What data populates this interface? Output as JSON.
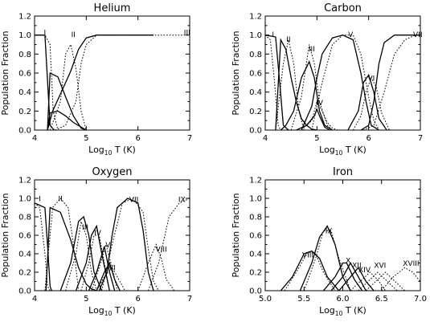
{
  "chart_data": [
    {
      "type": "line",
      "title": "Helium",
      "xlabel": "Log10 T (K)",
      "ylabel": "Population Fraction",
      "xlim": [
        4,
        7
      ],
      "ylim": [
        0,
        1.2
      ],
      "xticks": [
        "4",
        "5",
        "6",
        "7"
      ],
      "yticks": [
        "0.0",
        "0.2",
        "0.4",
        "0.6",
        "0.8",
        "1.0",
        "1.2"
      ],
      "ion_labels": [
        "I",
        "II",
        "III"
      ],
      "series": [
        {
          "style": "solid",
          "x": [
            4.0,
            4.1,
            4.2,
            4.3,
            4.38
          ],
          "y": [
            1.0,
            1.0,
            1.0,
            0.05,
            0.0
          ]
        },
        {
          "style": "solid",
          "x": [
            4.25,
            4.3,
            4.45,
            4.6,
            4.75,
            4.9,
            5.0
          ],
          "y": [
            0.0,
            0.6,
            0.56,
            0.35,
            0.15,
            0.02,
            0.0
          ]
        },
        {
          "style": "solid",
          "x": [
            4.25,
            4.35,
            4.5,
            4.7,
            4.85,
            5.0,
            5.2,
            5.5,
            6.0,
            6.3
          ],
          "y": [
            0.0,
            0.2,
            0.38,
            0.62,
            0.85,
            0.97,
            1.0,
            1.0,
            1.0,
            1.0
          ]
        },
        {
          "style": "solid",
          "x": [
            4.25,
            4.3,
            4.45,
            4.6,
            4.75,
            5.0
          ],
          "y": [
            0.0,
            0.18,
            0.2,
            0.15,
            0.08,
            0.0
          ]
        },
        {
          "style": "dotted",
          "x": [
            4.0,
            4.2,
            4.3,
            4.36,
            4.45
          ],
          "y": [
            1.0,
            1.0,
            0.9,
            0.2,
            0.0
          ]
        },
        {
          "style": "dotted",
          "x": [
            4.3,
            4.5,
            4.6,
            4.7,
            4.8,
            4.9,
            5.0
          ],
          "y": [
            0.0,
            0.3,
            0.8,
            0.9,
            0.65,
            0.2,
            0.0
          ]
        },
        {
          "style": "dotted",
          "x": [
            4.4,
            4.6,
            4.8,
            4.9,
            5.0,
            5.2,
            6.0,
            7.0
          ],
          "y": [
            0.0,
            0.05,
            0.3,
            0.7,
            0.9,
            1.0,
            1.0,
            1.0
          ]
        }
      ]
    },
    {
      "type": "line",
      "title": "Carbon",
      "xlabel": "Log10 T (K)",
      "ylabel": "Population Fraction",
      "xlim": [
        4,
        7
      ],
      "ylim": [
        0,
        1.2
      ],
      "xticks": [
        "4",
        "5",
        "6",
        "7"
      ],
      "yticks": [
        "0.0",
        "0.2",
        "0.4",
        "0.6",
        "0.8",
        "1.0",
        "1.2"
      ],
      "ion_labels": [
        "I",
        "II",
        "III",
        "IV",
        "V",
        "VI",
        "VII"
      ],
      "series": [
        {
          "style": "solid",
          "x": [
            4.0,
            4.2,
            4.28,
            4.35,
            4.45
          ],
          "y": [
            1.0,
            0.98,
            0.5,
            0.05,
            0.0
          ]
        },
        {
          "style": "solid",
          "x": [
            4.2,
            4.3,
            4.4,
            4.5,
            4.6,
            4.7,
            4.8,
            4.9,
            5.0
          ],
          "y": [
            0.0,
            0.95,
            0.85,
            0.55,
            0.3,
            0.12,
            0.05,
            0.01,
            0.0
          ]
        },
        {
          "style": "solid",
          "x": [
            4.3,
            4.4,
            4.55,
            4.7,
            4.85,
            4.95,
            5.05,
            5.15,
            5.3
          ],
          "y": [
            0.0,
            0.05,
            0.2,
            0.55,
            0.72,
            0.55,
            0.2,
            0.05,
            0.0
          ]
        },
        {
          "style": "solid",
          "x": [
            4.6,
            4.8,
            4.95,
            5.0,
            5.05,
            5.15,
            5.25
          ],
          "y": [
            0.0,
            0.05,
            0.15,
            0.22,
            0.15,
            0.03,
            0.0
          ]
        },
        {
          "style": "solid",
          "x": [
            4.7,
            4.9,
            5.0,
            5.1,
            5.3,
            5.5,
            5.7,
            5.85,
            5.95,
            6.05,
            6.2
          ],
          "y": [
            0.0,
            0.25,
            0.55,
            0.8,
            0.97,
            1.0,
            0.95,
            0.6,
            0.3,
            0.05,
            0.0
          ]
        },
        {
          "style": "solid",
          "x": [
            5.6,
            5.8,
            5.9,
            6.0,
            6.1,
            6.2,
            6.35
          ],
          "y": [
            0.0,
            0.2,
            0.5,
            0.58,
            0.4,
            0.12,
            0.0
          ]
        },
        {
          "style": "solid",
          "x": [
            5.85,
            6.0,
            6.1,
            6.2,
            6.3,
            6.5,
            6.7,
            7.0
          ],
          "y": [
            0.0,
            0.05,
            0.3,
            0.7,
            0.92,
            1.0,
            1.0,
            1.0
          ]
        },
        {
          "style": "dotted",
          "x": [
            4.0,
            4.1,
            4.18,
            4.25,
            4.3
          ],
          "y": [
            1.0,
            0.95,
            0.5,
            0.05,
            0.0
          ]
        },
        {
          "style": "dotted",
          "x": [
            4.2,
            4.35,
            4.45,
            4.55,
            4.65,
            4.75
          ],
          "y": [
            0.0,
            0.7,
            0.95,
            0.7,
            0.2,
            0.0
          ]
        },
        {
          "style": "dotted",
          "x": [
            4.5,
            4.7,
            4.85,
            4.95,
            5.05,
            5.2,
            5.3
          ],
          "y": [
            0.0,
            0.35,
            0.9,
            0.7,
            0.3,
            0.05,
            0.0
          ]
        },
        {
          "style": "dotted",
          "x": [
            4.7,
            4.9,
            5.0,
            5.1,
            5.2,
            5.3,
            5.4
          ],
          "y": [
            0.0,
            0.1,
            0.3,
            0.2,
            0.08,
            0.02,
            0.0
          ]
        },
        {
          "style": "dotted",
          "x": [
            4.9,
            5.1,
            5.3,
            5.5,
            5.7,
            5.85,
            6.0,
            6.1,
            6.2
          ],
          "y": [
            0.0,
            0.5,
            0.9,
            1.0,
            1.0,
            0.8,
            0.35,
            0.1,
            0.0
          ]
        },
        {
          "style": "dotted",
          "x": [
            5.7,
            5.85,
            5.95,
            6.05,
            6.15,
            6.25,
            6.4
          ],
          "y": [
            0.0,
            0.15,
            0.4,
            0.55,
            0.45,
            0.18,
            0.0
          ]
        },
        {
          "style": "dotted",
          "x": [
            5.9,
            6.1,
            6.3,
            6.5,
            6.7,
            6.9,
            7.0
          ],
          "y": [
            0.0,
            0.05,
            0.4,
            0.8,
            0.95,
            1.0,
            1.0
          ]
        }
      ]
    },
    {
      "type": "line",
      "title": "Oxygen",
      "xlabel": "Log10 T (K)",
      "ylabel": "Population Fraction",
      "xlim": [
        4,
        7
      ],
      "ylim": [
        0,
        1.2
      ],
      "xticks": [
        "4",
        "5",
        "6",
        "7"
      ],
      "yticks": [
        "0.0",
        "0.2",
        "0.4",
        "0.6",
        "0.8",
        "1.0",
        "1.2"
      ],
      "ion_labels": [
        "I",
        "II",
        "III",
        "IV",
        "V",
        "VI",
        "VII",
        "VIII",
        "IX"
      ],
      "series": [
        {
          "style": "solid",
          "x": [
            4.0,
            4.2,
            4.25,
            4.3,
            4.33
          ],
          "y": [
            0.95,
            0.9,
            0.5,
            0.05,
            0.0
          ]
        },
        {
          "style": "solid",
          "x": [
            4.22,
            4.3,
            4.5,
            4.7,
            4.85,
            5.0,
            5.1,
            5.2
          ],
          "y": [
            0.0,
            0.9,
            0.85,
            0.55,
            0.25,
            0.07,
            0.02,
            0.0
          ]
        },
        {
          "style": "solid",
          "x": [
            4.5,
            4.7,
            4.85,
            4.95,
            5.05,
            5.15,
            5.3
          ],
          "y": [
            0.0,
            0.3,
            0.75,
            0.8,
            0.6,
            0.2,
            0.0
          ]
        },
        {
          "style": "solid",
          "x": [
            4.8,
            5.0,
            5.1,
            5.2,
            5.3,
            5.45
          ],
          "y": [
            0.0,
            0.3,
            0.6,
            0.7,
            0.4,
            0.0
          ]
        },
        {
          "style": "solid",
          "x": [
            5.05,
            5.2,
            5.35,
            5.45,
            5.55
          ],
          "y": [
            0.0,
            0.2,
            0.48,
            0.2,
            0.0
          ]
        },
        {
          "style": "solid",
          "x": [
            5.2,
            5.35,
            5.45,
            5.55,
            5.65
          ],
          "y": [
            0.0,
            0.2,
            0.3,
            0.12,
            0.0
          ]
        },
        {
          "style": "solid",
          "x": [
            5.25,
            5.4,
            5.5,
            5.6,
            5.8,
            6.0,
            6.1,
            6.2,
            6.3
          ],
          "y": [
            0.0,
            0.2,
            0.6,
            0.9,
            1.0,
            0.95,
            0.65,
            0.2,
            0.0
          ]
        },
        {
          "style": "dotted",
          "x": [
            4.0,
            4.1,
            4.2,
            4.25,
            4.3
          ],
          "y": [
            0.95,
            0.9,
            0.4,
            0.05,
            0.0
          ]
        },
        {
          "style": "dotted",
          "x": [
            4.2,
            4.35,
            4.5,
            4.65,
            4.75,
            4.85
          ],
          "y": [
            0.0,
            0.9,
            1.0,
            0.9,
            0.5,
            0.0
          ]
        },
        {
          "style": "dotted",
          "x": [
            4.6,
            4.8,
            4.9,
            5.0,
            5.1,
            5.2
          ],
          "y": [
            0.0,
            0.4,
            0.75,
            0.6,
            0.2,
            0.0
          ]
        },
        {
          "style": "dotted",
          "x": [
            4.9,
            5.05,
            5.15,
            5.25,
            5.35,
            5.45
          ],
          "y": [
            0.0,
            0.3,
            0.6,
            0.6,
            0.3,
            0.0
          ]
        },
        {
          "style": "dotted",
          "x": [
            5.1,
            5.25,
            5.38,
            5.5,
            5.6
          ],
          "y": [
            0.0,
            0.25,
            0.5,
            0.25,
            0.0
          ]
        },
        {
          "style": "dotted",
          "x": [
            5.2,
            5.35,
            5.5,
            5.65,
            5.75
          ],
          "y": [
            0.0,
            0.15,
            0.25,
            0.1,
            0.0
          ]
        },
        {
          "style": "dotted",
          "x": [
            5.3,
            5.5,
            5.7,
            5.9,
            6.1,
            6.2,
            6.3,
            6.4
          ],
          "y": [
            0.0,
            0.5,
            0.95,
            1.0,
            0.85,
            0.45,
            0.1,
            0.0
          ]
        },
        {
          "style": "dotted",
          "x": [
            6.0,
            6.2,
            6.35,
            6.45,
            6.55,
            6.7
          ],
          "y": [
            0.0,
            0.3,
            0.5,
            0.35,
            0.12,
            0.0
          ]
        },
        {
          "style": "dotted",
          "x": [
            6.2,
            6.4,
            6.6,
            6.8,
            7.0
          ],
          "y": [
            0.0,
            0.3,
            0.8,
            0.95,
            1.0
          ]
        }
      ]
    },
    {
      "type": "line",
      "title": "Iron",
      "xlabel": "Log10 T (K)",
      "ylabel": "Population Fraction",
      "xlim": [
        5.0,
        7.0
      ],
      "ylim": [
        0,
        1.2
      ],
      "xticks": [
        "5.0",
        "5.5",
        "6.0",
        "6.5",
        "7.0"
      ],
      "yticks": [
        "0.0",
        "0.2",
        "0.4",
        "0.6",
        "0.8",
        "1.0",
        "1.2"
      ],
      "ion_labels": [
        "VIII",
        "IX",
        "X",
        "XII",
        "XIV",
        "XVI",
        "XVIII"
      ],
      "series": [
        {
          "style": "solid",
          "x": [
            5.2,
            5.35,
            5.5,
            5.6,
            5.7,
            5.8,
            5.95
          ],
          "y": [
            0.0,
            0.15,
            0.4,
            0.43,
            0.35,
            0.15,
            0.0
          ]
        },
        {
          "style": "solid",
          "x": [
            5.45,
            5.6,
            5.7,
            5.8,
            5.9,
            6.0,
            6.1
          ],
          "y": [
            0.0,
            0.3,
            0.58,
            0.7,
            0.5,
            0.15,
            0.0
          ]
        },
        {
          "style": "solid",
          "x": [
            5.75,
            5.9,
            6.0,
            6.05,
            6.15,
            6.25
          ],
          "y": [
            0.0,
            0.15,
            0.3,
            0.3,
            0.12,
            0.0
          ]
        },
        {
          "style": "solid",
          "x": [
            5.85,
            6.0,
            6.1,
            6.2,
            6.3
          ],
          "y": [
            0.0,
            0.15,
            0.3,
            0.15,
            0.0
          ]
        },
        {
          "style": "solid",
          "x": [
            5.95,
            6.1,
            6.2,
            6.3,
            6.4
          ],
          "y": [
            0.0,
            0.15,
            0.25,
            0.1,
            0.0
          ]
        },
        {
          "style": "dotted",
          "x": [
            5.25,
            5.4,
            5.55,
            5.65,
            5.75,
            5.9
          ],
          "y": [
            0.0,
            0.2,
            0.42,
            0.4,
            0.2,
            0.0
          ]
        },
        {
          "style": "dotted",
          "x": [
            5.5,
            5.65,
            5.75,
            5.85,
            5.95,
            6.1
          ],
          "y": [
            0.0,
            0.35,
            0.65,
            0.65,
            0.35,
            0.0
          ]
        },
        {
          "style": "dotted",
          "x": [
            6.1,
            6.25,
            6.35,
            6.45,
            6.55
          ],
          "y": [
            0.0,
            0.12,
            0.2,
            0.12,
            0.0
          ]
        },
        {
          "style": "dotted",
          "x": [
            6.2,
            6.35,
            6.45,
            6.55,
            6.7
          ],
          "y": [
            0.0,
            0.12,
            0.2,
            0.12,
            0.0
          ]
        },
        {
          "style": "dotted",
          "x": [
            6.3,
            6.45,
            6.55,
            6.65,
            6.8
          ],
          "y": [
            0.0,
            0.12,
            0.2,
            0.12,
            0.0
          ]
        },
        {
          "style": "dotted",
          "x": [
            6.5,
            6.65,
            6.8,
            6.9,
            7.0
          ],
          "y": [
            0.0,
            0.15,
            0.25,
            0.2,
            0.1
          ]
        }
      ]
    }
  ]
}
